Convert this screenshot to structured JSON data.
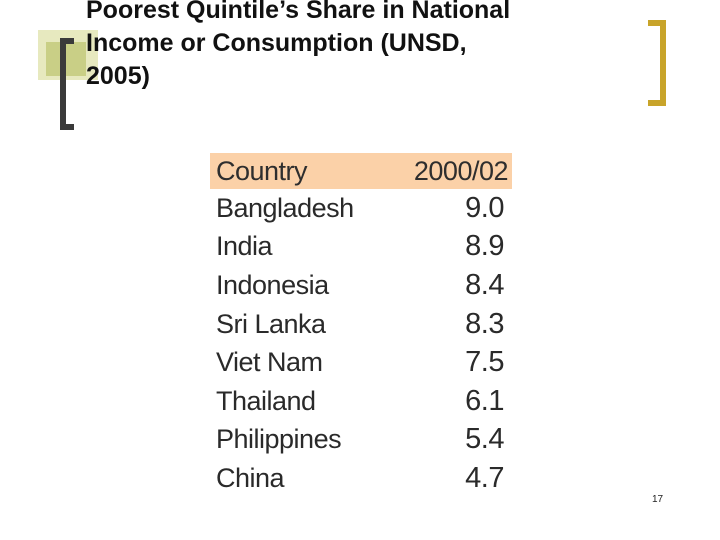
{
  "title_lines": [
    "Poorest Quintile’s Share in National",
    "Income or Consumption (UNSD,",
    "2005)"
  ],
  "table": {
    "headers": [
      "Country",
      "2000/02"
    ],
    "rows": [
      {
        "country": "Bangladesh",
        "value": "9.0"
      },
      {
        "country": "India",
        "value": "8.9"
      },
      {
        "country": "Indonesia",
        "value": "8.4"
      },
      {
        "country": "Sri Lanka",
        "value": "8.3"
      },
      {
        "country": "Viet Nam",
        "value": "7.5"
      },
      {
        "country": "Thailand",
        "value": "6.1"
      },
      {
        "country": "Philippines",
        "value": "5.4"
      },
      {
        "country": "China",
        "value": "4.7"
      }
    ]
  },
  "page_number": "17",
  "colors": {
    "header_fill": "#fbd1a8",
    "bracket_left": "#3a3a3a",
    "bracket_right": "#c8a42a",
    "square_light": "#e7e9bf",
    "square_dark": "#c9cf86"
  }
}
